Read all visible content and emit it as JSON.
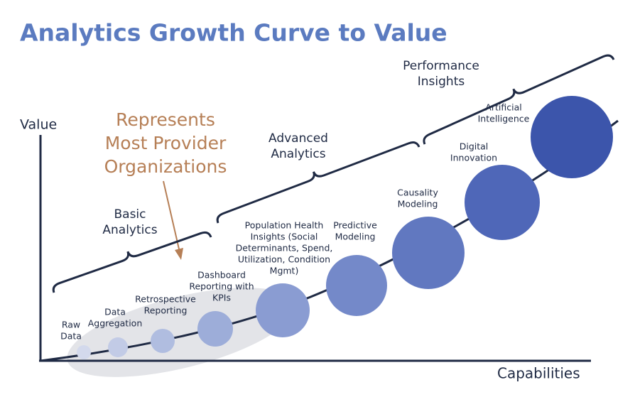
{
  "title": "Analytics Growth Curve to Value",
  "y_axis_label": "Value",
  "x_axis_label": "Capabilities",
  "callout": [
    "Represents",
    "Most Provider",
    "Organizations"
  ],
  "phases": [
    {
      "label": [
        "Basic",
        "Analytics"
      ]
    },
    {
      "label": [
        "Advanced",
        "Analytics"
      ]
    },
    {
      "label": [
        "Performance",
        "Insights"
      ]
    }
  ],
  "stages": [
    {
      "label": [
        "Raw",
        "Data"
      ]
    },
    {
      "label": [
        "Data",
        "Aggregation"
      ]
    },
    {
      "label": [
        "Retrospective",
        "Reporting"
      ]
    },
    {
      "label": [
        "Dashboard",
        "Reporting with",
        "KPIs"
      ]
    },
    {
      "label": [
        "Population Health",
        "Insights (Social",
        "Determinants, Spend,",
        "Utilization, Condition",
        "Mgmt)"
      ]
    },
    {
      "label": [
        "Predictive",
        "Modeling"
      ]
    },
    {
      "label": [
        "Causality",
        "Modeling"
      ]
    },
    {
      "label": [
        "Digital",
        "Innovation"
      ]
    },
    {
      "label": [
        "Artificial",
        "Intelligence"
      ]
    }
  ]
}
